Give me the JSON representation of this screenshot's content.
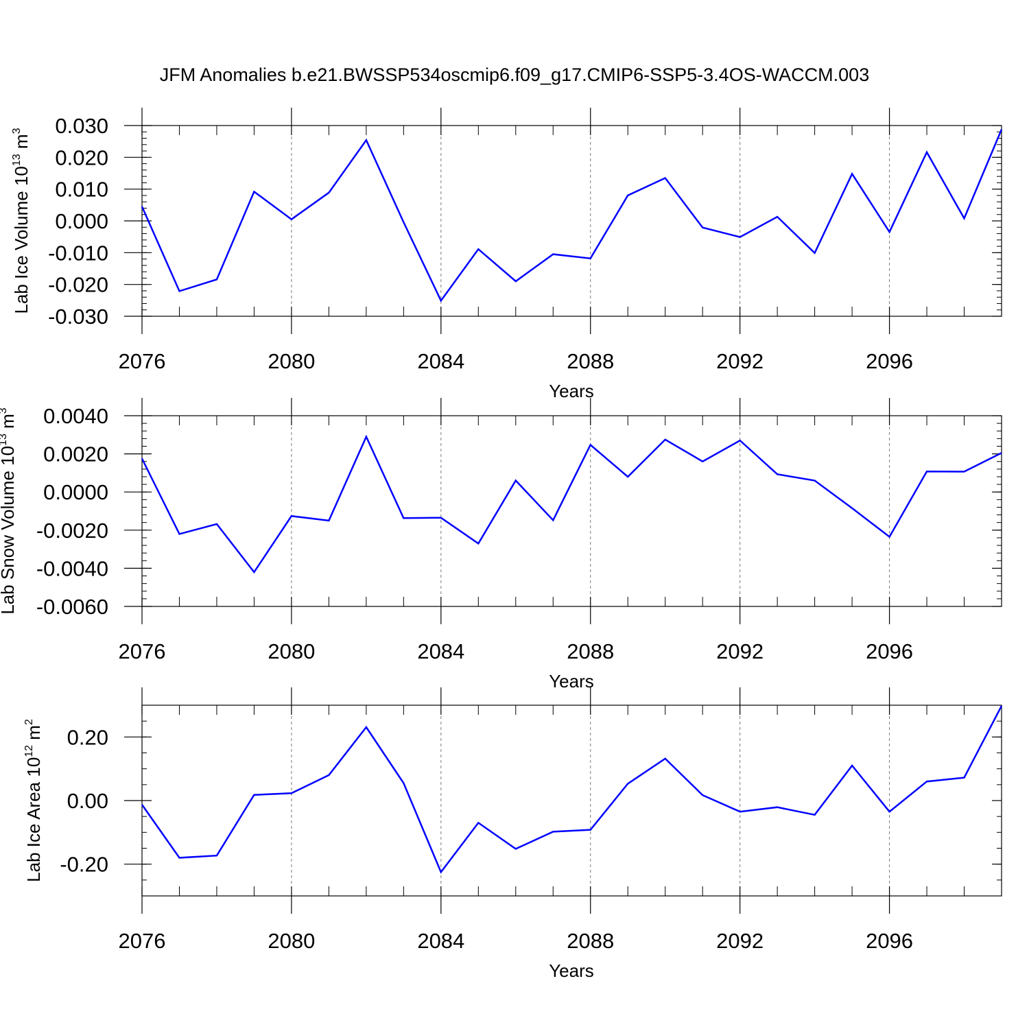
{
  "title": "JFM Anomalies b.e21.BWSSP534oscmip6.f09_g17.CMIP6-SSP5-3.4OS-WACCM.003",
  "chart_data": [
    {
      "type": "line",
      "name": "lab-ice-volume",
      "ylabel": "Lab Ice Volume 10",
      "ylabel_exp": "13",
      "ylabel_unit": " m",
      "ylabel_unit_exp": "3",
      "xlabel": "Years",
      "xlim": [
        2076,
        2099
      ],
      "ylim": [
        -0.03,
        0.03
      ],
      "x_ticks": [
        2076,
        2080,
        2084,
        2088,
        2092,
        2096
      ],
      "x_tick_labels": [
        "2076",
        "2080",
        "2084",
        "2088",
        "2092",
        "2096"
      ],
      "y_ticks": [
        -0.03,
        -0.02,
        -0.01,
        0.0,
        0.01,
        0.02,
        0.03
      ],
      "y_tick_labels": [
        "-0.030",
        "-0.020",
        "-0.010",
        "0.000",
        "0.010",
        "0.020",
        "0.030"
      ],
      "y_minor_step": 0.002,
      "grid_x": [
        2080,
        2084,
        2088,
        2092,
        2096
      ],
      "line_color": "#0000ff",
      "x": [
        2076,
        2077,
        2078,
        2079,
        2080,
        2081,
        2082,
        2083,
        2084,
        2085,
        2086,
        2087,
        2088,
        2089,
        2090,
        2091,
        2092,
        2093,
        2094,
        2095,
        2096,
        2097,
        2098,
        2099
      ],
      "values": [
        0.0045,
        -0.0221,
        -0.0184,
        0.0092,
        0.0005,
        0.0089,
        0.0254,
        -0.0004,
        -0.0251,
        -0.0089,
        -0.019,
        -0.0105,
        -0.0118,
        0.008,
        0.0135,
        -0.0021,
        -0.0051,
        0.0013,
        -0.0101,
        0.0148,
        -0.0035,
        0.0216,
        0.0008,
        0.0288
      ]
    },
    {
      "type": "line",
      "name": "lab-snow-volume",
      "ylabel": "Lab Snow Volume 10",
      "ylabel_exp": "13",
      "ylabel_unit": " m",
      "ylabel_unit_exp": "3",
      "xlabel": "Years",
      "xlim": [
        2076,
        2099
      ],
      "ylim": [
        -0.006,
        0.004
      ],
      "x_ticks": [
        2076,
        2080,
        2084,
        2088,
        2092,
        2096
      ],
      "x_tick_labels": [
        "2076",
        "2080",
        "2084",
        "2088",
        "2092",
        "2096"
      ],
      "y_ticks": [
        -0.006,
        -0.004,
        -0.002,
        0.0,
        0.002,
        0.004
      ],
      "y_tick_labels": [
        "-0.0060",
        "-0.0040",
        "-0.0020",
        "0.0000",
        "0.0020",
        "0.0040"
      ],
      "y_minor_step": 0.0004,
      "grid_x": [
        2080,
        2084,
        2088,
        2092,
        2096
      ],
      "line_color": "#0000ff",
      "x": [
        2076,
        2077,
        2078,
        2079,
        2080,
        2081,
        2082,
        2083,
        2084,
        2085,
        2086,
        2087,
        2088,
        2089,
        2090,
        2091,
        2092,
        2093,
        2094,
        2095,
        2096,
        2097,
        2098,
        2099
      ],
      "values": [
        0.00175,
        -0.0022,
        -0.00168,
        -0.0042,
        -0.00126,
        -0.0015,
        0.0029,
        -0.00137,
        -0.00135,
        -0.0027,
        0.0006,
        -0.00148,
        0.00247,
        0.0008,
        0.00275,
        0.0016,
        0.0027,
        0.00093,
        0.0006,
        -0.00085,
        -0.00235,
        0.00108,
        0.00107,
        0.00205
      ]
    },
    {
      "type": "line",
      "name": "lab-ice-area",
      "ylabel": "Lab Ice Area 10",
      "ylabel_exp": "12",
      "ylabel_unit": " m",
      "ylabel_unit_exp": "2",
      "xlabel": "Years",
      "xlim": [
        2076,
        2099
      ],
      "ylim": [
        -0.3,
        0.3
      ],
      "x_ticks": [
        2076,
        2080,
        2084,
        2088,
        2092,
        2096
      ],
      "x_tick_labels": [
        "2076",
        "2080",
        "2084",
        "2088",
        "2092",
        "2096"
      ],
      "y_ticks": [
        -0.2,
        0.0,
        0.2
      ],
      "y_tick_labels": [
        "-0.20",
        "0.00",
        "0.20"
      ],
      "y_minor_step": 0.05,
      "grid_x": [
        2080,
        2084,
        2088,
        2092,
        2096
      ],
      "line_color": "#0000ff",
      "x": [
        2076,
        2077,
        2078,
        2079,
        2080,
        2081,
        2082,
        2083,
        2084,
        2085,
        2086,
        2087,
        2088,
        2089,
        2090,
        2091,
        2092,
        2093,
        2094,
        2095,
        2096,
        2097,
        2098,
        2099
      ],
      "values": [
        -0.013,
        -0.18,
        -0.173,
        0.018,
        0.023,
        0.08,
        0.231,
        0.055,
        -0.225,
        -0.07,
        -0.152,
        -0.098,
        -0.092,
        0.053,
        0.132,
        0.017,
        -0.035,
        -0.021,
        -0.045,
        0.11,
        -0.035,
        0.06,
        0.072,
        0.298
      ]
    }
  ]
}
